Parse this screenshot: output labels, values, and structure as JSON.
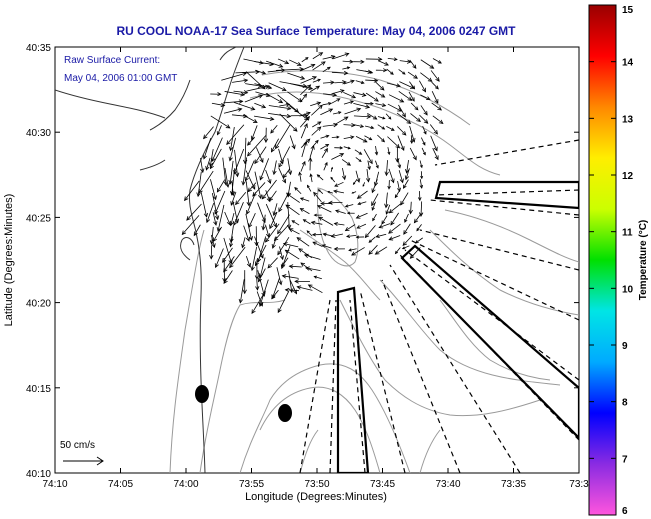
{
  "title": "RU COOL  NOAA-17  Sea Surface Temperature:  May 04, 2006 0247 GMT",
  "inset": {
    "line1": "Raw Surface Current:",
    "line2": "May 04, 2006 01:00 GMT"
  },
  "scale_label": "50 cm/s",
  "axes": {
    "xlabel": "Longitude (Degrees:Minutes)",
    "ylabel": "Latitude (Degrees:Minutes)",
    "xticks": [
      "74:10",
      "74:05",
      "74:00",
      "73:55",
      "73:50",
      "73:45",
      "73:40",
      "73:35",
      "73:3"
    ],
    "yticks": [
      "40:35",
      "40:30",
      "40:25",
      "40:20",
      "40:15",
      "40:10"
    ]
  },
  "colorbar": {
    "label": "Temperature (°C)",
    "min": 6,
    "max": 15,
    "ticks": [
      "15",
      "14",
      "13",
      "12",
      "11",
      "10",
      "9",
      "8",
      "7",
      "6"
    ],
    "colors": [
      "#ff55dd",
      "#8a2be2",
      "#0000ff",
      "#00aaff",
      "#00e5e5",
      "#00e000",
      "#ccff00",
      "#ffee00",
      "#ff8800",
      "#ff0000",
      "#990000"
    ]
  },
  "colors": {
    "title": "#1a1aa6",
    "contour": "#9a9a9a",
    "coast": "#333333"
  }
}
